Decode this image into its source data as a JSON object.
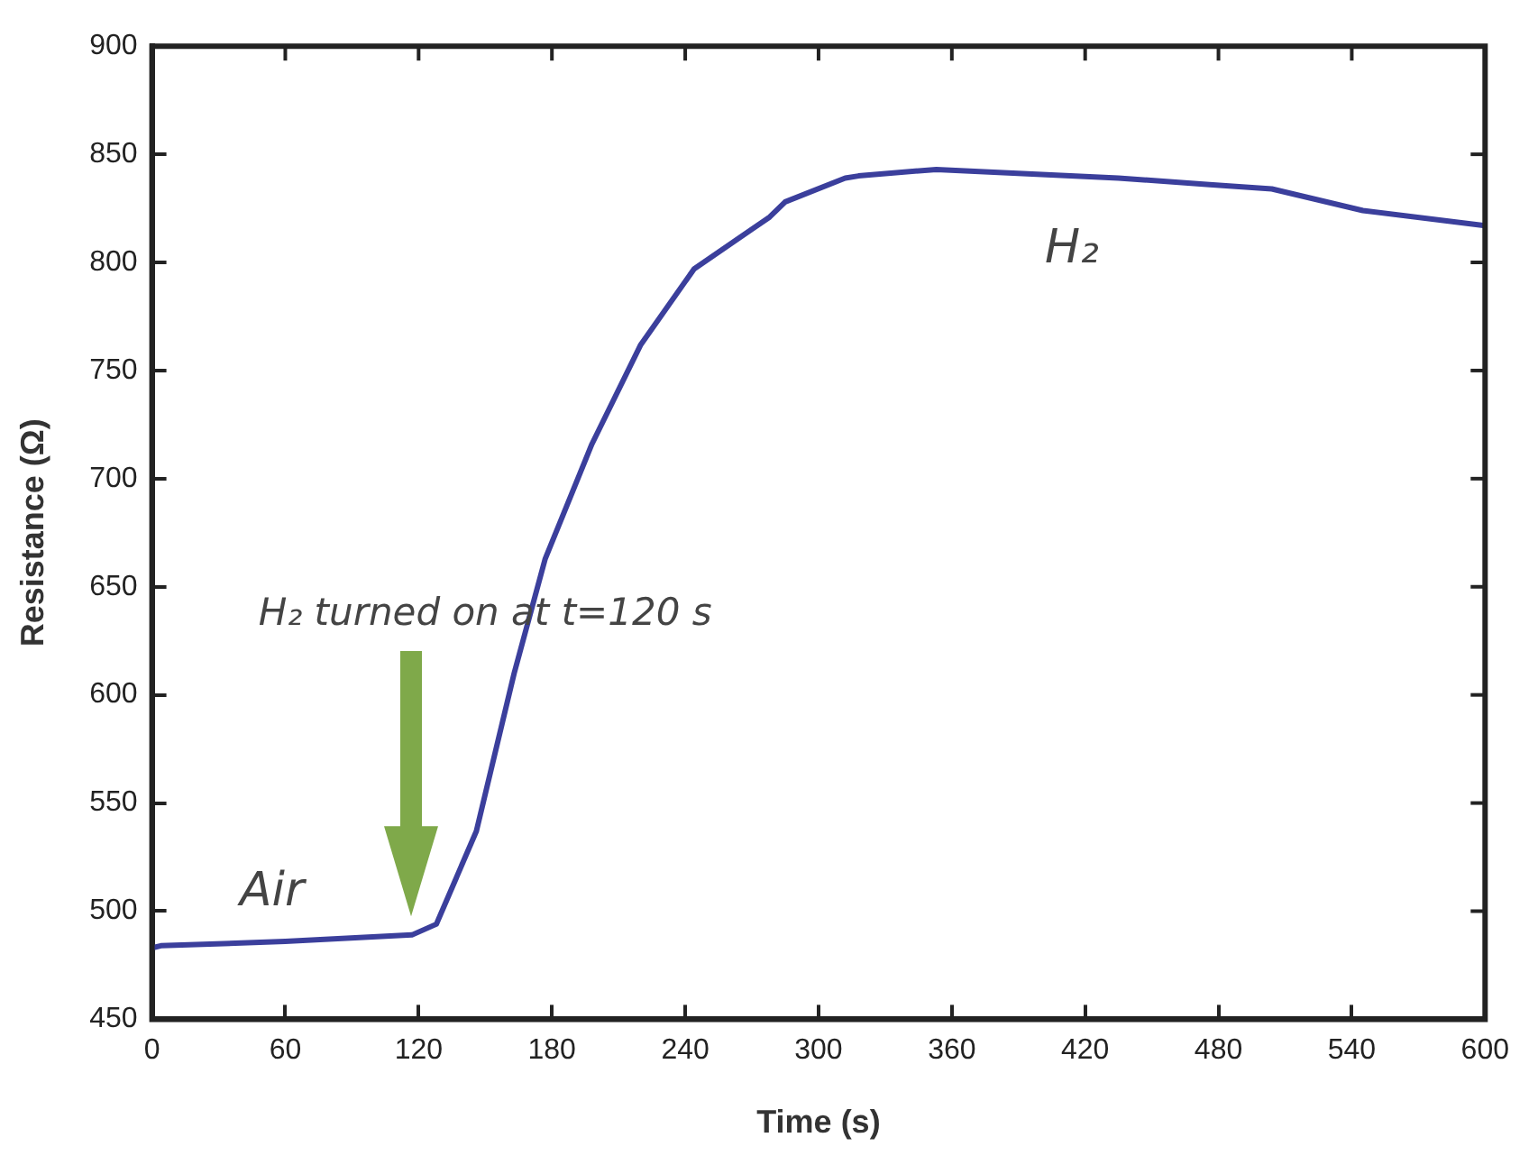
{
  "chart_data": {
    "type": "line",
    "xlabel": "Time (s)",
    "ylabel": "Resistance (Ω)",
    "xlim": [
      0,
      600
    ],
    "xticks": [
      0,
      60,
      120,
      180,
      240,
      300,
      360,
      420,
      480,
      540,
      600
    ],
    "ylim": [
      450,
      900
    ],
    "yticks": [
      450,
      500,
      550,
      600,
      650,
      700,
      750,
      800,
      850,
      900
    ],
    "grid": false,
    "legend": false,
    "marker": "none",
    "line_style": "solid",
    "series": [
      {
        "color": "#3b3f9c",
        "x": [
          0,
          4,
          60,
          117,
          128,
          146,
          163,
          177,
          198,
          220,
          244,
          278,
          285,
          312,
          318,
          353,
          394,
          435,
          476,
          504,
          545,
          600
        ],
        "values": [
          483,
          484,
          486,
          489,
          494,
          537,
          610,
          663,
          716,
          762,
          797,
          821,
          828,
          839,
          840,
          843,
          841,
          839,
          836,
          834,
          824,
          817
        ]
      }
    ],
    "annotations": [
      "Air",
      "H₂",
      "H₂ turned on at t=120 s"
    ]
  }
}
